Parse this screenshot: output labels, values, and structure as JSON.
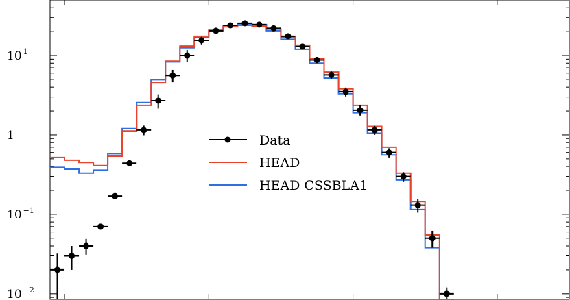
{
  "chart_data": {
    "type": "histogram",
    "y_scale": "log",
    "ylim": [
      0.0085,
      50
    ],
    "x_range": [
      0,
      36
    ],
    "y_ticks": [
      {
        "value": 0.01,
        "base": "10",
        "exp": "−2"
      },
      {
        "value": 0.1,
        "base": "10",
        "exp": "−1"
      },
      {
        "value": 1,
        "base": "1",
        "exp": ""
      },
      {
        "value": 10,
        "base": "10",
        "exp": "1"
      }
    ],
    "x_major_ticks": [
      1,
      11,
      21,
      31
    ],
    "legend_placement": "center-left",
    "legend": {
      "data_label": "Data",
      "head_label": "HEAD",
      "css_label": "HEAD CSSBLA1"
    },
    "series": [
      {
        "name": "Data",
        "kind": "points",
        "color": "#000000",
        "values": [
          0.02,
          0.03,
          0.04,
          0.07,
          0.17,
          0.44,
          1.15,
          2.7,
          5.6,
          10,
          15.5,
          20.5,
          24,
          25.5,
          24.5,
          22,
          17.5,
          13,
          8.8,
          5.7,
          3.5,
          2.05,
          1.15,
          0.6,
          0.3,
          0.13,
          0.05,
          0.01
        ],
        "lower_errors": [
          0.012,
          0.01,
          0.009,
          0.006,
          0.012,
          0.035,
          0.16,
          0.55,
          1.0,
          1.7,
          1.7,
          1.3,
          1.0,
          0.9,
          0.9,
          0.9,
          0.8,
          0.8,
          0.8,
          0.6,
          0.45,
          0.3,
          0.15,
          0.08,
          0.04,
          0.025,
          0.012,
          0.002
        ],
        "upper_errors": [
          0.012,
          0.01,
          0.009,
          0.006,
          0.012,
          0.035,
          0.16,
          0.55,
          1.0,
          1.7,
          1.7,
          1.3,
          1.0,
          0.9,
          0.9,
          0.9,
          0.8,
          0.8,
          0.8,
          0.6,
          0.45,
          0.3,
          0.15,
          0.08,
          0.04,
          0.025,
          0.012,
          0.002
        ]
      },
      {
        "name": "HEAD",
        "kind": "step",
        "color": "#e8432b",
        "values": [
          0.52,
          0.48,
          0.45,
          0.41,
          0.54,
          1.12,
          2.35,
          4.6,
          8.5,
          13.2,
          17.5,
          20.5,
          23,
          24,
          23.5,
          21.5,
          17,
          13.5,
          9.2,
          6.2,
          3.8,
          2.35,
          1.28,
          0.7,
          0.33,
          0.145,
          0.055,
          0.0085
        ]
      },
      {
        "name": "HEAD CSSBLA1",
        "kind": "step",
        "color": "#2e6fe6",
        "values": [
          0.39,
          0.37,
          0.33,
          0.36,
          0.58,
          1.2,
          2.55,
          4.95,
          8.3,
          12.5,
          16.8,
          20.8,
          24,
          25,
          24.5,
          20.5,
          16,
          12,
          8,
          5.2,
          3.3,
          1.9,
          1.05,
          0.56,
          0.27,
          0.115,
          0.038,
          0.0085
        ]
      }
    ]
  }
}
